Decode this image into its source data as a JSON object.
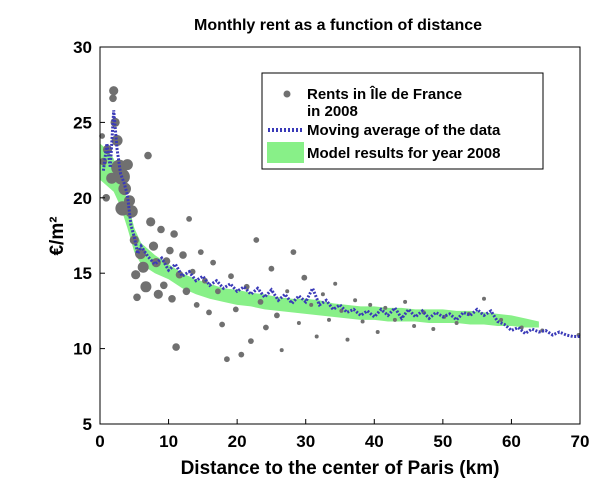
{
  "chart_data": {
    "type": "scatter",
    "title": "Monthly rent as a function of distance",
    "xlabel": "Distance to the center of Paris (km)",
    "ylabel": "€/m²",
    "xlim": [
      0,
      70
    ],
    "ylim": [
      5,
      30
    ],
    "xticks": [
      "0",
      "10",
      "20",
      "30",
      "40",
      "50",
      "60",
      "70"
    ],
    "yticks": [
      "5",
      "10",
      "15",
      "20",
      "25",
      "30"
    ],
    "grid": false,
    "legend_position": "top-right",
    "legend": {
      "entries": [
        {
          "label_line1": "Rents in Île de France",
          "label_line2": "in 2008",
          "marker": "dot"
        },
        {
          "label": "Moving average of the data",
          "marker": "dotted-line"
        },
        {
          "label": "Model results for year 2008",
          "marker": "band"
        }
      ]
    },
    "colors": {
      "scatter": "#707070",
      "moving_average": "#3a3ab8",
      "model_band": "#88f088"
    },
    "series": [
      {
        "name": "Rents in Île de France in 2008",
        "kind": "scatter",
        "points": [
          {
            "x": 0.3,
            "y": 24.1,
            "w": 2
          },
          {
            "x": 0.5,
            "y": 22.4,
            "w": 3
          },
          {
            "x": 0.9,
            "y": 20.0,
            "w": 3
          },
          {
            "x": 1.1,
            "y": 23.2,
            "w": 4
          },
          {
            "x": 1.7,
            "y": 21.3,
            "w": 5
          },
          {
            "x": 1.9,
            "y": 26.6,
            "w": 3
          },
          {
            "x": 2.0,
            "y": 27.1,
            "w": 4
          },
          {
            "x": 2.2,
            "y": 25.0,
            "w": 4
          },
          {
            "x": 2.5,
            "y": 23.8,
            "w": 5
          },
          {
            "x": 2.8,
            "y": 22.0,
            "w": 8
          },
          {
            "x": 3.2,
            "y": 21.4,
            "w": 8
          },
          {
            "x": 3.3,
            "y": 19.3,
            "w": 7
          },
          {
            "x": 3.6,
            "y": 20.6,
            "w": 6
          },
          {
            "x": 4.0,
            "y": 22.2,
            "w": 5
          },
          {
            "x": 4.3,
            "y": 19.8,
            "w": 5
          },
          {
            "x": 4.6,
            "y": 19.1,
            "w": 6
          },
          {
            "x": 5.0,
            "y": 17.2,
            "w": 4
          },
          {
            "x": 5.2,
            "y": 14.9,
            "w": 4
          },
          {
            "x": 5.4,
            "y": 13.4,
            "w": 3
          },
          {
            "x": 5.9,
            "y": 16.3,
            "w": 5
          },
          {
            "x": 6.3,
            "y": 15.4,
            "w": 5
          },
          {
            "x": 6.7,
            "y": 14.1,
            "w": 5
          },
          {
            "x": 7.0,
            "y": 22.8,
            "w": 3
          },
          {
            "x": 7.4,
            "y": 18.4,
            "w": 4
          },
          {
            "x": 7.8,
            "y": 16.8,
            "w": 4
          },
          {
            "x": 8.2,
            "y": 15.7,
            "w": 4
          },
          {
            "x": 8.5,
            "y": 13.6,
            "w": 4
          },
          {
            "x": 8.9,
            "y": 17.9,
            "w": 3
          },
          {
            "x": 9.3,
            "y": 14.2,
            "w": 3
          },
          {
            "x": 9.7,
            "y": 15.8,
            "w": 3
          },
          {
            "x": 10.2,
            "y": 16.5,
            "w": 3
          },
          {
            "x": 10.5,
            "y": 13.3,
            "w": 3
          },
          {
            "x": 10.8,
            "y": 17.6,
            "w": 3
          },
          {
            "x": 11.1,
            "y": 10.1,
            "w": 3
          },
          {
            "x": 11.6,
            "y": 14.9,
            "w": 3
          },
          {
            "x": 12.1,
            "y": 16.2,
            "w": 3
          },
          {
            "x": 12.6,
            "y": 13.8,
            "w": 3
          },
          {
            "x": 13.0,
            "y": 18.6,
            "w": 2
          },
          {
            "x": 13.5,
            "y": 15.1,
            "w": 2
          },
          {
            "x": 14.1,
            "y": 12.9,
            "w": 2
          },
          {
            "x": 14.7,
            "y": 16.4,
            "w": 2
          },
          {
            "x": 15.3,
            "y": 14.5,
            "w": 2
          },
          {
            "x": 15.9,
            "y": 12.4,
            "w": 2
          },
          {
            "x": 16.5,
            "y": 15.7,
            "w": 2
          },
          {
            "x": 17.2,
            "y": 13.8,
            "w": 2
          },
          {
            "x": 17.8,
            "y": 11.6,
            "w": 2
          },
          {
            "x": 18.5,
            "y": 9.3,
            "w": 2
          },
          {
            "x": 19.1,
            "y": 14.8,
            "w": 2
          },
          {
            "x": 19.8,
            "y": 12.6,
            "w": 2
          },
          {
            "x": 20.6,
            "y": 9.6,
            "w": 2
          },
          {
            "x": 21.4,
            "y": 14.1,
            "w": 2
          },
          {
            "x": 22.0,
            "y": 10.5,
            "w": 2
          },
          {
            "x": 22.8,
            "y": 17.2,
            "w": 2
          },
          {
            "x": 23.4,
            "y": 13.1,
            "w": 2
          },
          {
            "x": 24.2,
            "y": 11.4,
            "w": 2
          },
          {
            "x": 25.0,
            "y": 15.3,
            "w": 2
          },
          {
            "x": 25.8,
            "y": 12.2,
            "w": 2
          },
          {
            "x": 26.5,
            "y": 9.9,
            "w": 1
          },
          {
            "x": 27.3,
            "y": 13.8,
            "w": 1
          },
          {
            "x": 28.2,
            "y": 16.4,
            "w": 2
          },
          {
            "x": 29.0,
            "y": 11.7,
            "w": 1
          },
          {
            "x": 29.8,
            "y": 14.7,
            "w": 2
          },
          {
            "x": 30.8,
            "y": 12.9,
            "w": 1
          },
          {
            "x": 31.6,
            "y": 10.8,
            "w": 1
          },
          {
            "x": 32.5,
            "y": 13.6,
            "w": 1
          },
          {
            "x": 33.4,
            "y": 11.9,
            "w": 1
          },
          {
            "x": 34.3,
            "y": 14.3,
            "w": 1
          },
          {
            "x": 35.2,
            "y": 12.5,
            "w": 1
          },
          {
            "x": 36.1,
            "y": 10.6,
            "w": 1
          },
          {
            "x": 37.2,
            "y": 13.2,
            "w": 1
          },
          {
            "x": 38.3,
            "y": 11.8,
            "w": 1
          },
          {
            "x": 39.4,
            "y": 12.9,
            "w": 1
          },
          {
            "x": 40.5,
            "y": 11.1,
            "w": 1
          },
          {
            "x": 41.6,
            "y": 12.7,
            "w": 1
          },
          {
            "x": 43.0,
            "y": 11.9,
            "w": 1
          },
          {
            "x": 44.5,
            "y": 13.1,
            "w": 1
          },
          {
            "x": 45.8,
            "y": 11.5,
            "w": 1
          },
          {
            "x": 47.2,
            "y": 12.4,
            "w": 1
          },
          {
            "x": 48.6,
            "y": 11.3,
            "w": 1
          },
          {
            "x": 50.2,
            "y": 12.1,
            "w": 1
          },
          {
            "x": 52.0,
            "y": 11.7,
            "w": 1
          },
          {
            "x": 53.8,
            "y": 12.3,
            "w": 1
          },
          {
            "x": 56.0,
            "y": 13.3,
            "w": 1
          },
          {
            "x": 58.5,
            "y": 11.9,
            "w": 1
          },
          {
            "x": 61.5,
            "y": 11.4,
            "w": 1
          },
          {
            "x": 64.5,
            "y": 11.2,
            "w": 1
          },
          {
            "x": 69.8,
            "y": 10.9,
            "w": 1
          }
        ]
      },
      {
        "name": "Moving average of the data",
        "kind": "line",
        "points": [
          {
            "x": 0.5,
            "y": 21.8
          },
          {
            "x": 1.0,
            "y": 23.6
          },
          {
            "x": 1.5,
            "y": 22.0
          },
          {
            "x": 2.0,
            "y": 25.8
          },
          {
            "x": 2.5,
            "y": 23.2
          },
          {
            "x": 3.0,
            "y": 21.6
          },
          {
            "x": 3.5,
            "y": 21.0
          },
          {
            "x": 4.0,
            "y": 20.2
          },
          {
            "x": 4.5,
            "y": 18.2
          },
          {
            "x": 5.0,
            "y": 17.4
          },
          {
            "x": 5.5,
            "y": 16.3
          },
          {
            "x": 6.0,
            "y": 16.8
          },
          {
            "x": 7.0,
            "y": 16.1
          },
          {
            "x": 8.0,
            "y": 15.6
          },
          {
            "x": 9.0,
            "y": 16.0
          },
          {
            "x": 10.0,
            "y": 15.2
          },
          {
            "x": 11.0,
            "y": 15.6
          },
          {
            "x": 12.0,
            "y": 14.8
          },
          {
            "x": 13.0,
            "y": 15.1
          },
          {
            "x": 14.0,
            "y": 14.5
          },
          {
            "x": 15.0,
            "y": 14.8
          },
          {
            "x": 16.0,
            "y": 14.2
          },
          {
            "x": 17.0,
            "y": 14.5
          },
          {
            "x": 18.0,
            "y": 14.0
          },
          {
            "x": 19.0,
            "y": 14.3
          },
          {
            "x": 20.0,
            "y": 13.8
          },
          {
            "x": 21.0,
            "y": 14.1
          },
          {
            "x": 22.0,
            "y": 13.6
          },
          {
            "x": 23.0,
            "y": 14.0
          },
          {
            "x": 24.0,
            "y": 13.4
          },
          {
            "x": 25.0,
            "y": 13.9
          },
          {
            "x": 26.0,
            "y": 13.2
          },
          {
            "x": 27.0,
            "y": 13.6
          },
          {
            "x": 28.0,
            "y": 13.0
          },
          {
            "x": 29.0,
            "y": 13.5
          },
          {
            "x": 30.0,
            "y": 13.1
          },
          {
            "x": 31.0,
            "y": 14.0
          },
          {
            "x": 32.0,
            "y": 12.9
          },
          {
            "x": 33.0,
            "y": 13.2
          },
          {
            "x": 34.0,
            "y": 12.6
          },
          {
            "x": 35.0,
            "y": 12.9
          },
          {
            "x": 36.0,
            "y": 12.4
          },
          {
            "x": 37.0,
            "y": 12.6
          },
          {
            "x": 38.0,
            "y": 12.2
          },
          {
            "x": 39.0,
            "y": 12.5
          },
          {
            "x": 40.0,
            "y": 12.1
          },
          {
            "x": 41.0,
            "y": 12.6
          },
          {
            "x": 42.0,
            "y": 12.2
          },
          {
            "x": 43.0,
            "y": 12.7
          },
          {
            "x": 44.0,
            "y": 12.0
          },
          {
            "x": 45.0,
            "y": 12.6
          },
          {
            "x": 46.0,
            "y": 12.1
          },
          {
            "x": 47.0,
            "y": 12.5
          },
          {
            "x": 48.0,
            "y": 12.0
          },
          {
            "x": 49.0,
            "y": 12.4
          },
          {
            "x": 50.0,
            "y": 12.1
          },
          {
            "x": 51.0,
            "y": 12.3
          },
          {
            "x": 52.0,
            "y": 11.9
          },
          {
            "x": 53.0,
            "y": 12.4
          },
          {
            "x": 54.0,
            "y": 12.2
          },
          {
            "x": 55.0,
            "y": 12.6
          },
          {
            "x": 56.0,
            "y": 12.2
          },
          {
            "x": 57.0,
            "y": 12.5
          },
          {
            "x": 58.0,
            "y": 11.8
          },
          {
            "x": 59.0,
            "y": 11.6
          },
          {
            "x": 60.0,
            "y": 11.2
          },
          {
            "x": 61.0,
            "y": 11.4
          },
          {
            "x": 62.0,
            "y": 11.0
          },
          {
            "x": 63.0,
            "y": 11.3
          },
          {
            "x": 64.0,
            "y": 11.1
          },
          {
            "x": 65.0,
            "y": 11.2
          },
          {
            "x": 66.0,
            "y": 10.9
          },
          {
            "x": 67.0,
            "y": 11.1
          },
          {
            "x": 68.0,
            "y": 10.9
          },
          {
            "x": 69.0,
            "y": 10.8
          },
          {
            "x": 70.0,
            "y": 10.8
          }
        ]
      },
      {
        "name": "Model results for year 2008",
        "kind": "band",
        "x": [
          0,
          1,
          2,
          3,
          4,
          5,
          6,
          8,
          10,
          12,
          14,
          16,
          18,
          20,
          22,
          24,
          26,
          28,
          30,
          32,
          34,
          36,
          38,
          40,
          42,
          44,
          46,
          48,
          50,
          52,
          54,
          56,
          58,
          60,
          62,
          64
        ],
        "upper": [
          23.6,
          23.2,
          22.6,
          21.4,
          19.8,
          18.0,
          17.0,
          16.2,
          15.6,
          15.0,
          14.6,
          14.3,
          14.0,
          13.9,
          13.7,
          13.6,
          13.4,
          13.3,
          13.3,
          13.2,
          13.0,
          12.9,
          12.8,
          12.8,
          12.7,
          12.7,
          12.6,
          12.6,
          12.6,
          12.5,
          12.5,
          12.4,
          12.3,
          12.2,
          12.0,
          11.8
        ],
        "lower": [
          21.2,
          20.8,
          20.4,
          19.4,
          18.0,
          16.4,
          15.6,
          15.0,
          14.6,
          14.0,
          13.6,
          13.3,
          13.1,
          12.9,
          12.8,
          12.6,
          12.5,
          12.4,
          12.3,
          12.2,
          12.1,
          12.0,
          11.9,
          11.9,
          11.8,
          11.8,
          11.8,
          11.7,
          11.7,
          11.7,
          11.6,
          11.6,
          11.5,
          11.5,
          11.4,
          11.4
        ]
      }
    ]
  }
}
